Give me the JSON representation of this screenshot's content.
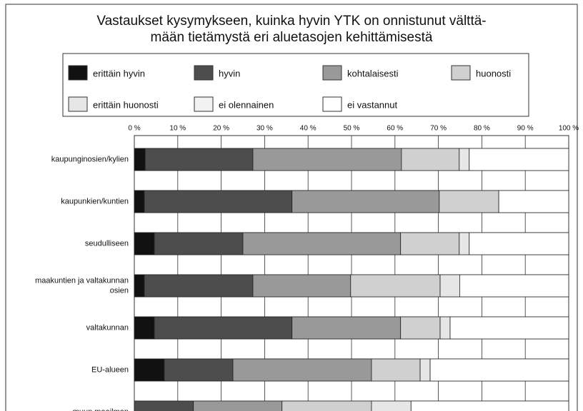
{
  "chart_data": {
    "type": "stacked_barh",
    "title": [
      "Vastaukset kysymykseen, kuinka hyvin YTK on onnistunut välttä-",
      "mään tietämystä eri aluetasojen kehittämisestä"
    ],
    "categories": [
      "kaupunginosien/kylien",
      "kaupunkien/kuntien",
      "seudulliseen",
      [
        "maakuntien ja valtakunnan",
        "osien"
      ],
      "valtakunnan",
      "EU-alueen",
      "muun maailman"
    ],
    "series": [
      {
        "name": "erittäin hyvin",
        "color": "#111111",
        "values": [
          2.5,
          2.3,
          4.6,
          2.3,
          4.6,
          6.9,
          0
        ]
      },
      {
        "name": "hyvin",
        "color": "#4d4d4d",
        "values": [
          24.8,
          34.0,
          20.4,
          25.0,
          31.7,
          15.8,
          13.6
        ]
      },
      {
        "name": "kohtalaisesti",
        "color": "#999999",
        "values": [
          34.2,
          33.9,
          36.3,
          22.5,
          25.0,
          31.9,
          20.4
        ]
      },
      {
        "name": "huonosti",
        "color": "#d0d0d0",
        "values": [
          13.3,
          13.7,
          13.5,
          20.6,
          9.1,
          11.2,
          20.6
        ]
      },
      {
        "name": "erittäin huonosti",
        "color": "#e6e6e6",
        "values": [
          2.3,
          0,
          2.3,
          4.5,
          2.3,
          2.3,
          9.1
        ]
      },
      {
        "name": "ei olennainen",
        "color": "#f2f2f2",
        "values": [
          0,
          0,
          0,
          0,
          0,
          0,
          0
        ]
      },
      {
        "name": "ei vastannut",
        "color": "#ffffff",
        "values": [
          22.9,
          16.1,
          22.9,
          25.1,
          27.3,
          31.9,
          36.3
        ]
      }
    ],
    "xlim": [
      0,
      100
    ],
    "xticks": [
      {
        "value": 0,
        "label": "0 %"
      },
      {
        "value": 10,
        "label": "10 %"
      },
      {
        "value": 20,
        "label": "20 %"
      },
      {
        "value": 30,
        "label": "30 %"
      },
      {
        "value": 40,
        "label": "40 %"
      },
      {
        "value": 50,
        "label": "50 %"
      },
      {
        "value": 60,
        "label": "60 %"
      },
      {
        "value": 70,
        "label": "70 %"
      },
      {
        "value": 80,
        "label": "80 %"
      },
      {
        "value": 90,
        "label": "90 %"
      },
      {
        "value": 100,
        "label": "100 %"
      }
    ],
    "grid": true
  }
}
